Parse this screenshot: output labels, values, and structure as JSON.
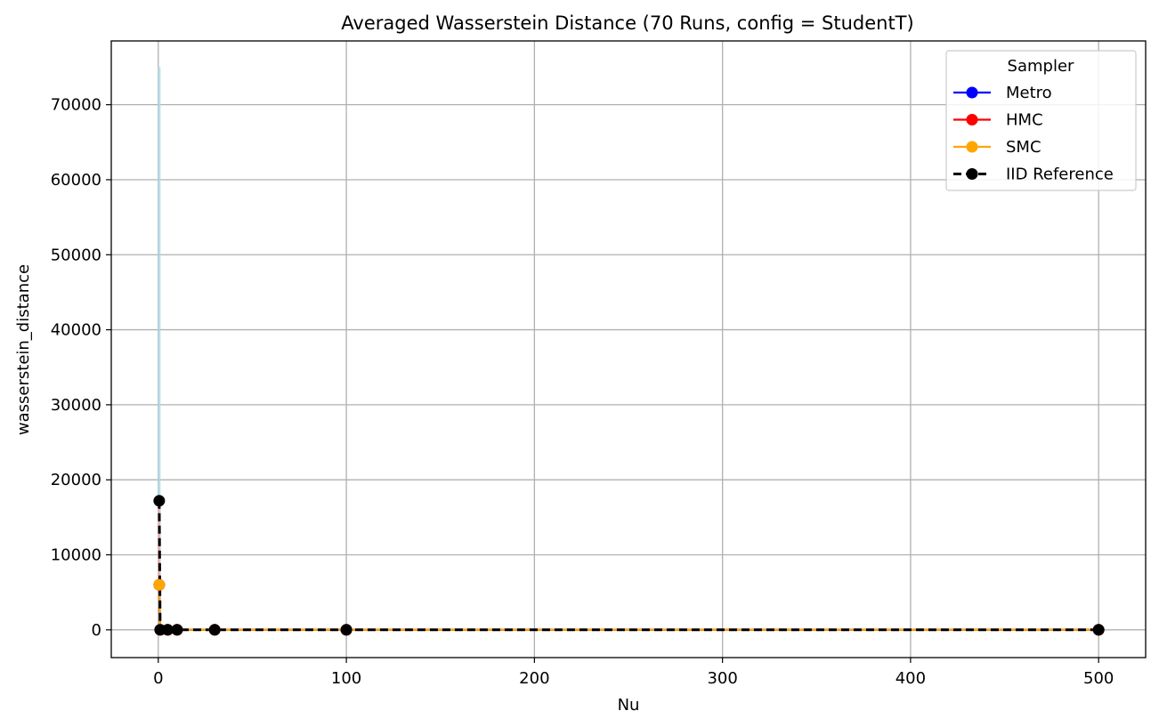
{
  "chart_data": {
    "type": "line",
    "title": "Averaged Wasserstein Distance (70 Runs, config = StudentT)",
    "xlabel": "Nu",
    "ylabel": "wasserstein_distance",
    "xlim": [
      -25,
      525
    ],
    "ylim": [
      -3700,
      78500
    ],
    "x_ticks": [
      0,
      100,
      200,
      300,
      400,
      500
    ],
    "x_tick_labels": [
      "0",
      "100",
      "200",
      "300",
      "400",
      "500"
    ],
    "y_ticks": [
      0,
      10000,
      20000,
      30000,
      40000,
      50000,
      60000,
      70000
    ],
    "y_tick_labels": [
      "0",
      "10000",
      "20000",
      "30000",
      "40000",
      "50000",
      "60000",
      "70000"
    ],
    "grid": true,
    "legend": {
      "title": "Sampler",
      "placement": "top-right"
    },
    "x": [
      0.5,
      1,
      5,
      10,
      30,
      100,
      500
    ],
    "series": [
      {
        "name": "Metro",
        "color": "#0000ff",
        "linestyle": "solid",
        "marker": "circle",
        "values": [
          6000,
          0,
          0,
          0,
          0,
          0,
          0
        ],
        "error_upper": [
          75000,
          0,
          0,
          0,
          0,
          0,
          0
        ],
        "error_color": "#add8e6"
      },
      {
        "name": "HMC",
        "color": "#ff0000",
        "linestyle": "solid",
        "marker": "circle",
        "values": [
          6000,
          0,
          0,
          0,
          0,
          0,
          0
        ],
        "error_upper": [
          17500,
          0,
          0,
          0,
          0,
          0,
          0
        ],
        "error_color": "#f4a6a6"
      },
      {
        "name": "SMC",
        "color": "#ffa500",
        "linestyle": "solid",
        "marker": "circle",
        "values": [
          6000,
          0,
          0,
          0,
          0,
          0,
          0
        ],
        "error_upper": [
          6200,
          0,
          0,
          0,
          0,
          0,
          0
        ],
        "error_color": "#ffd27f"
      },
      {
        "name": "IID Reference",
        "color": "#000000",
        "linestyle": "dashed",
        "marker": "circle",
        "values": [
          17200,
          0,
          0,
          0,
          0,
          0,
          0
        ]
      }
    ]
  }
}
